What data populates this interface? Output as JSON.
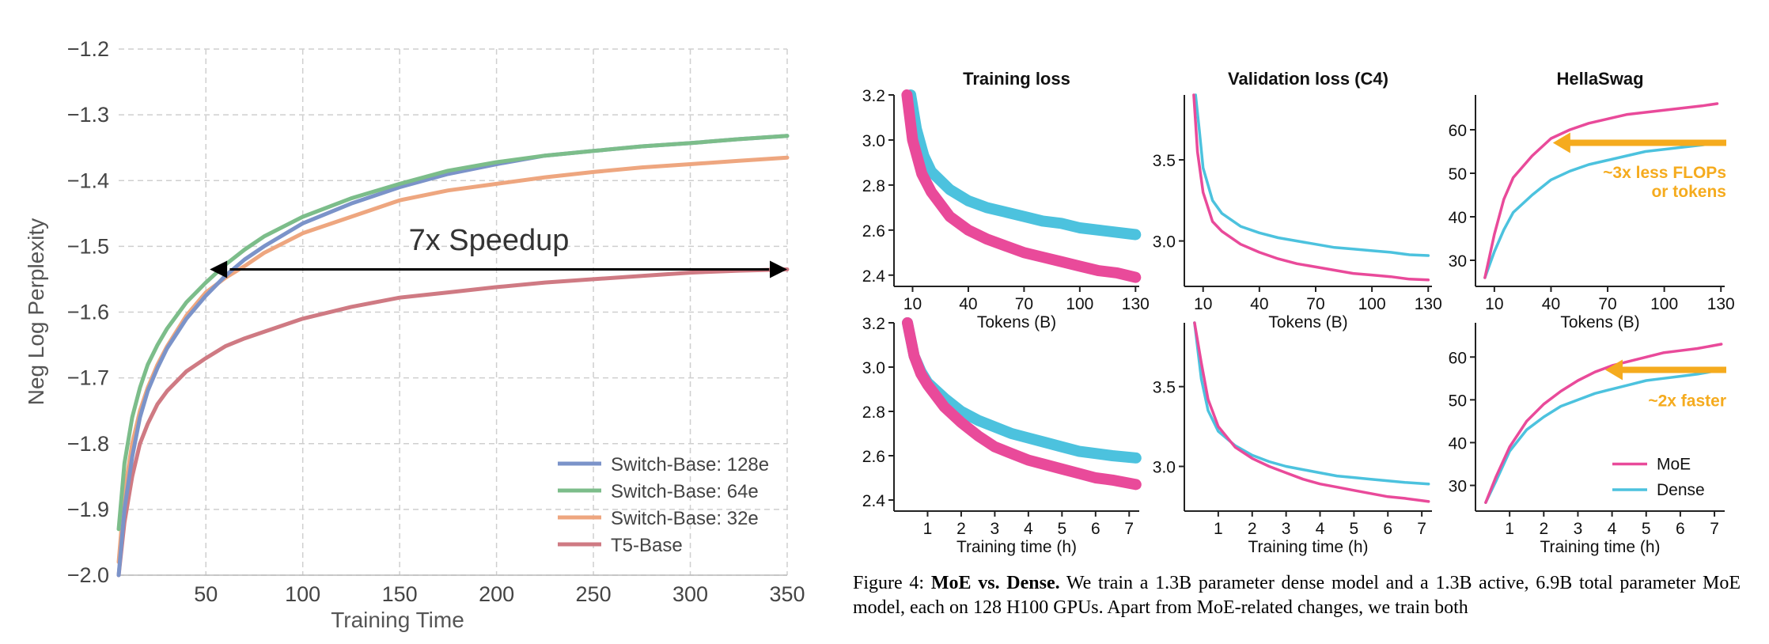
{
  "colors": {
    "switch128": "#7b93c9",
    "switch64": "#7cbd8a",
    "switch32": "#eea67f",
    "t5": "#cf7a83",
    "moe": "#e94a9a",
    "dense": "#4cc2de",
    "arrow": "#f5ab1e"
  },
  "chart_data": [
    {
      "type": "line",
      "xlabel": "Training Time",
      "ylabel": "Neg Log Perplexity",
      "xlim": [
        5,
        350
      ],
      "ylim": [
        -2.0,
        -1.2
      ],
      "xticks": [
        "50",
        "100",
        "150",
        "200",
        "250",
        "300",
        "350"
      ],
      "yticks": [
        "−2.0",
        "−1.9",
        "−1.8",
        "−1.7",
        "−1.6",
        "−1.5",
        "−1.4",
        "−1.3",
        "−1.2"
      ],
      "grid": true,
      "legend": "lower-right",
      "annotation": "7x Speedup",
      "series": [
        {
          "name": "Switch-Base: 128e",
          "x": [
            5,
            8,
            12,
            16,
            20,
            25,
            30,
            40,
            50,
            60,
            70,
            80,
            100,
            125,
            150,
            175,
            200,
            225,
            250,
            275,
            300,
            325,
            350
          ],
          "values": [
            -2.0,
            -1.9,
            -1.82,
            -1.76,
            -1.72,
            -1.685,
            -1.655,
            -1.61,
            -1.575,
            -1.545,
            -1.52,
            -1.5,
            -1.465,
            -1.435,
            -1.41,
            -1.39,
            -1.375,
            -1.362,
            -1.355,
            -1.348,
            -1.343,
            -1.337,
            -1.332
          ]
        },
        {
          "name": "Switch-Base: 64e",
          "x": [
            5,
            8,
            12,
            16,
            20,
            25,
            30,
            40,
            50,
            60,
            70,
            80,
            100,
            125,
            150,
            175,
            200,
            225,
            250,
            275,
            300,
            325,
            350
          ],
          "values": [
            -1.93,
            -1.83,
            -1.76,
            -1.715,
            -1.68,
            -1.65,
            -1.625,
            -1.585,
            -1.555,
            -1.528,
            -1.505,
            -1.485,
            -1.455,
            -1.427,
            -1.405,
            -1.385,
            -1.372,
            -1.362,
            -1.355,
            -1.348,
            -1.343,
            -1.337,
            -1.332
          ]
        },
        {
          "name": "Switch-Base: 32e",
          "x": [
            5,
            8,
            12,
            16,
            20,
            25,
            30,
            40,
            50,
            60,
            70,
            80,
            100,
            125,
            150,
            175,
            200,
            225,
            250,
            275,
            300,
            325,
            350
          ],
          "values": [
            -1.98,
            -1.875,
            -1.8,
            -1.75,
            -1.715,
            -1.68,
            -1.652,
            -1.605,
            -1.57,
            -1.548,
            -1.53,
            -1.51,
            -1.48,
            -1.455,
            -1.43,
            -1.415,
            -1.405,
            -1.395,
            -1.387,
            -1.38,
            -1.375,
            -1.37,
            -1.365
          ]
        },
        {
          "name": "T5-Base",
          "x": [
            5,
            8,
            12,
            16,
            20,
            25,
            30,
            40,
            50,
            60,
            70,
            80,
            100,
            125,
            150,
            175,
            200,
            225,
            250,
            275,
            300,
            325,
            350
          ],
          "values": [
            -2.0,
            -1.92,
            -1.85,
            -1.8,
            -1.77,
            -1.74,
            -1.72,
            -1.69,
            -1.67,
            -1.652,
            -1.64,
            -1.63,
            -1.61,
            -1.592,
            -1.578,
            -1.57,
            -1.562,
            -1.555,
            -1.55,
            -1.545,
            -1.54,
            -1.537,
            -1.535
          ]
        }
      ]
    },
    {
      "type": "line",
      "title": "Training loss",
      "xlabel": "Tokens (B)",
      "xlim": [
        0,
        132
      ],
      "ylim": [
        2.35,
        3.2
      ],
      "xticks": [
        "10",
        "40",
        "70",
        "100",
        "130"
      ],
      "yticks": [
        "2.4",
        "2.6",
        "2.8",
        "3.0",
        "3.2"
      ],
      "series": [
        {
          "name": "MoE",
          "x": [
            7,
            10,
            15,
            20,
            30,
            40,
            50,
            60,
            70,
            80,
            90,
            100,
            110,
            120,
            130
          ],
          "values": [
            3.2,
            3.0,
            2.85,
            2.77,
            2.66,
            2.6,
            2.56,
            2.53,
            2.5,
            2.48,
            2.46,
            2.44,
            2.42,
            2.41,
            2.39
          ]
        },
        {
          "name": "Dense",
          "x": [
            9,
            12,
            16,
            20,
            30,
            40,
            50,
            60,
            70,
            80,
            90,
            100,
            110,
            120,
            130
          ],
          "values": [
            3.2,
            3.05,
            2.93,
            2.86,
            2.78,
            2.73,
            2.7,
            2.68,
            2.66,
            2.64,
            2.63,
            2.61,
            2.6,
            2.59,
            2.58
          ]
        }
      ]
    },
    {
      "type": "line",
      "title": "Validation loss (C4)",
      "xlabel": "Tokens (B)",
      "xlim": [
        0,
        132
      ],
      "ylim": [
        2.72,
        3.9
      ],
      "xticks": [
        "10",
        "40",
        "70",
        "100",
        "130"
      ],
      "yticks": [
        "3.0",
        "3.5"
      ],
      "series": [
        {
          "name": "MoE",
          "x": [
            5,
            7,
            10,
            15,
            20,
            30,
            40,
            50,
            60,
            70,
            80,
            90,
            100,
            110,
            120,
            130
          ],
          "values": [
            3.9,
            3.55,
            3.3,
            3.12,
            3.06,
            2.98,
            2.93,
            2.89,
            2.86,
            2.84,
            2.82,
            2.8,
            2.79,
            2.78,
            2.765,
            2.76
          ]
        },
        {
          "name": "Dense",
          "x": [
            6,
            8,
            10,
            15,
            20,
            30,
            40,
            50,
            60,
            70,
            80,
            90,
            100,
            110,
            120,
            130
          ],
          "values": [
            3.9,
            3.68,
            3.45,
            3.25,
            3.17,
            3.09,
            3.05,
            3.02,
            3.0,
            2.98,
            2.96,
            2.95,
            2.94,
            2.93,
            2.915,
            2.91
          ]
        }
      ]
    },
    {
      "type": "line",
      "title": "HellaSwag",
      "xlabel": "Tokens (B)",
      "xlim": [
        0,
        132
      ],
      "ylim": [
        24,
        68
      ],
      "xticks": [
        "10",
        "40",
        "70",
        "100",
        "130"
      ],
      "yticks": [
        "30",
        "40",
        "50",
        "60"
      ],
      "annotation": "~3x less FLOPs or tokens",
      "series": [
        {
          "name": "MoE",
          "x": [
            5,
            10,
            15,
            20,
            30,
            40,
            50,
            60,
            70,
            80,
            90,
            100,
            110,
            120,
            128
          ],
          "values": [
            26,
            36,
            44,
            49,
            54,
            58,
            60,
            61.5,
            62.5,
            63.5,
            64,
            64.5,
            65,
            65.5,
            66
          ]
        },
        {
          "name": "Dense",
          "x": [
            5,
            10,
            15,
            20,
            30,
            40,
            50,
            60,
            70,
            80,
            90,
            100,
            110,
            120,
            128
          ],
          "values": [
            26,
            32,
            37,
            41,
            45,
            48.5,
            50.5,
            52,
            53,
            54,
            55,
            55.5,
            56,
            56.5,
            57
          ]
        }
      ]
    },
    {
      "type": "line",
      "xlabel": "Training time (h)",
      "xlim": [
        0,
        7.3
      ],
      "ylim": [
        2.35,
        3.2
      ],
      "xticks": [
        "1",
        "2",
        "3",
        "4",
        "5",
        "6",
        "7"
      ],
      "yticks": [
        "2.4",
        "2.6",
        "2.8",
        "3.0",
        "3.2"
      ],
      "series": [
        {
          "name": "MoE",
          "x": [
            0.4,
            0.6,
            0.8,
            1.0,
            1.5,
            2.0,
            2.5,
            3.0,
            3.5,
            4.0,
            4.5,
            5.0,
            5.5,
            6.0,
            6.5,
            7.2
          ],
          "values": [
            3.2,
            3.05,
            2.97,
            2.92,
            2.82,
            2.75,
            2.69,
            2.64,
            2.61,
            2.58,
            2.56,
            2.54,
            2.52,
            2.5,
            2.49,
            2.47
          ]
        },
        {
          "name": "Dense",
          "x": [
            0.4,
            0.6,
            0.8,
            1.0,
            1.5,
            2.0,
            2.5,
            3.0,
            3.5,
            4.0,
            4.5,
            5.0,
            5.5,
            6.0,
            6.5,
            7.2
          ],
          "values": [
            3.2,
            3.05,
            2.98,
            2.93,
            2.86,
            2.8,
            2.76,
            2.73,
            2.7,
            2.68,
            2.66,
            2.64,
            2.62,
            2.61,
            2.6,
            2.59
          ]
        }
      ]
    },
    {
      "type": "line",
      "xlabel": "Training time (h)",
      "xlim": [
        0,
        7.3
      ],
      "ylim": [
        2.72,
        3.9
      ],
      "xticks": [
        "1",
        "2",
        "3",
        "4",
        "5",
        "6",
        "7"
      ],
      "yticks": [
        "3.0",
        "3.5"
      ],
      "series": [
        {
          "name": "MoE",
          "x": [
            0.3,
            0.5,
            0.7,
            1.0,
            1.5,
            2.0,
            2.5,
            3.0,
            3.5,
            4.0,
            4.5,
            5.0,
            5.5,
            6.0,
            6.5,
            7.2
          ],
          "values": [
            3.9,
            3.65,
            3.42,
            3.25,
            3.12,
            3.05,
            3.0,
            2.96,
            2.92,
            2.89,
            2.87,
            2.85,
            2.83,
            2.81,
            2.8,
            2.78
          ]
        },
        {
          "name": "Dense",
          "x": [
            0.3,
            0.5,
            0.7,
            1.0,
            1.5,
            2.0,
            2.5,
            3.0,
            3.5,
            4.0,
            4.5,
            5.0,
            5.5,
            6.0,
            6.5,
            7.2
          ],
          "values": [
            3.9,
            3.55,
            3.35,
            3.22,
            3.13,
            3.07,
            3.03,
            3.0,
            2.98,
            2.96,
            2.94,
            2.93,
            2.92,
            2.91,
            2.9,
            2.89
          ]
        }
      ]
    },
    {
      "type": "line",
      "xlabel": "Training time (h)",
      "xlim": [
        0,
        7.3
      ],
      "ylim": [
        24,
        68
      ],
      "xticks": [
        "1",
        "2",
        "3",
        "4",
        "5",
        "6",
        "7"
      ],
      "yticks": [
        "30",
        "40",
        "50",
        "60"
      ],
      "legend": "lower-right",
      "annotation": "~2x faster",
      "series": [
        {
          "name": "MoE",
          "x": [
            0.3,
            0.6,
            1.0,
            1.5,
            2.0,
            2.5,
            3.0,
            3.5,
            4.0,
            4.5,
            5.0,
            5.5,
            6.0,
            6.5,
            7.2
          ],
          "values": [
            26,
            32,
            39,
            45,
            49,
            52,
            54.5,
            56.5,
            58,
            59,
            60,
            61,
            61.5,
            62,
            63
          ]
        },
        {
          "name": "Dense",
          "x": [
            0.3,
            0.6,
            1.0,
            1.5,
            2.0,
            2.5,
            3.0,
            3.5,
            4.0,
            4.5,
            5.0,
            5.5,
            6.0,
            6.5,
            7.2
          ],
          "values": [
            26,
            31,
            38,
            43,
            46,
            48.5,
            50,
            51.5,
            52.5,
            53.5,
            54.5,
            55,
            55.5,
            56,
            57
          ]
        }
      ]
    }
  ],
  "caption": {
    "label": "Figure 4:",
    "bold": "MoE vs. Dense.",
    "text": " We train a 1.3B parameter dense model and a 1.3B active, 6.9B total parameter MoE model, each on 128 H100 GPUs.  Apart from MoE-related changes, we train both"
  }
}
